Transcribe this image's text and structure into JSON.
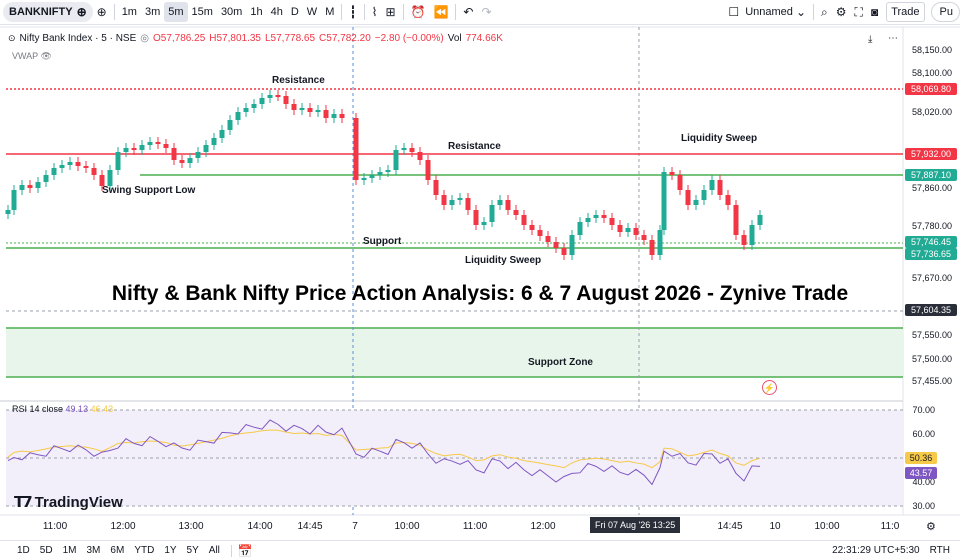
{
  "toolbar": {
    "symbol": "BANKNIFTY",
    "intervals": [
      "1m",
      "3m",
      "5m",
      "15m",
      "30m",
      "1h",
      "4h",
      "D",
      "W",
      "M"
    ],
    "active_interval": "5m",
    "layout_name": "Unnamed",
    "trade_label": "Trade",
    "publish_label": "Pu"
  },
  "legend": {
    "title": "Nifty Bank Index · 5 · NSE",
    "o": "O57,786.25",
    "h": "H57,801.35",
    "l": "L57,778.65",
    "c": "C57,782.20",
    "chg": "−2.80 (−0.00%)",
    "vol_label": "Vol",
    "vol": "774.66K",
    "vwap": "VWAP"
  },
  "rsi_legend": {
    "label": "RSI 14 close",
    "v1": "49.13",
    "v2": "46.43"
  },
  "price_axis": {
    "ticks": [
      "58,150.00",
      "58,100.00",
      "58,020.00",
      "57,860.00",
      "57,780.00",
      "57,670.00",
      "57,550.00",
      "57,500.00",
      "57,455.00"
    ],
    "labels": [
      {
        "text": "58,069.80",
        "color": "#f23645"
      },
      {
        "text": "57,932.00",
        "color": "#f23645"
      },
      {
        "text": "57,887.10",
        "color": "#22ab94"
      },
      {
        "text": "57,746.45",
        "color": "#22ab94"
      },
      {
        "text": "57,736.65",
        "color": "#22ab94"
      },
      {
        "text": "57,604.35",
        "color": "#2a2e39"
      }
    ],
    "rsi_ticks": [
      "70.00",
      "60.00",
      "40.00",
      "30.00"
    ],
    "rsi_labels": [
      {
        "text": "50.36",
        "color": "#f7c948"
      },
      {
        "text": "43.57",
        "color": "#7e57c2"
      }
    ]
  },
  "time_axis": {
    "ticks": [
      "11:00",
      "12:00",
      "13:00",
      "14:00",
      "14:45",
      "7",
      "10:00",
      "11:00",
      "12:00",
      "14:45",
      "10",
      "10:00",
      "11:0"
    ],
    "cursor": "Fri 07 Aug '26   13:25"
  },
  "annotations": {
    "resistance_1": "Resistance",
    "resistance_2": "Resistance",
    "swing_support": "Swing Support Low",
    "support": "Support",
    "liquidity_sweep_1": "Liquidity Sweep",
    "liquidity_sweep_2": "Liquidity Sweep",
    "support_zone": "Support Zone",
    "headline": "Nifty & Bank Nifty Price Action Analysis: 6 & 7 August 2026 - Zynive Trade"
  },
  "logo": "TradingView",
  "bottom_bar": {
    "ranges": [
      "1D",
      "5D",
      "1M",
      "3M",
      "6M",
      "YTD",
      "1Y",
      "5Y",
      "All"
    ],
    "clock": "22:31:29 UTC+5:30",
    "session": "RTH"
  },
  "colors": {
    "up": "#22ab94",
    "down": "#f23645",
    "rsi": "#7e57c2",
    "rsi_ma": "#f7c948"
  }
}
